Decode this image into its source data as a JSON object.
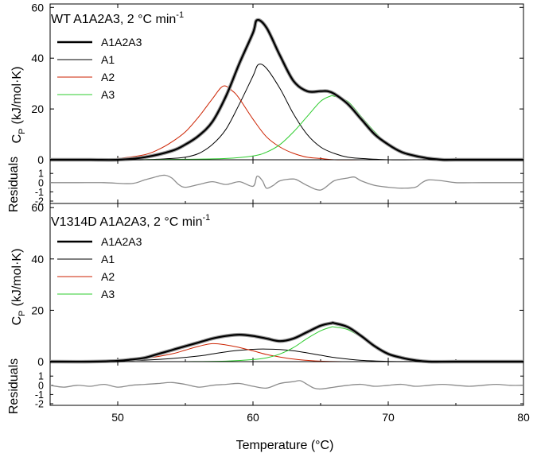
{
  "chart_data": [
    {
      "type": "line",
      "title": "WT A1A2A3, 2 °C min",
      "title_superscript": "-1",
      "ylabel": "C",
      "ylabel_subscript": "P",
      "ylabel_units": "(kJ/mol·K)",
      "xlim": [
        45,
        80
      ],
      "ylim": [
        -2,
        60
      ],
      "yticks": [
        0,
        20,
        40,
        60
      ],
      "legend_position": "top-left",
      "series": [
        {
          "name": "A1A2A3",
          "color": "#000000",
          "role": "total",
          "x": [
            45,
            48,
            50,
            52,
            54,
            55,
            56,
            57,
            58,
            59,
            60,
            60.3,
            61,
            62,
            63,
            64,
            65,
            65.5,
            66,
            67,
            68,
            69,
            70,
            71,
            72,
            72.5,
            73,
            74,
            75,
            77,
            80
          ],
          "y": [
            0,
            0,
            0,
            1,
            3.5,
            6,
            9.5,
            15,
            25,
            38,
            50,
            55,
            52,
            41,
            31,
            27,
            27,
            27,
            26,
            22,
            16,
            10,
            6,
            3,
            1.5,
            1,
            0.5,
            0,
            0,
            0,
            0
          ]
        },
        {
          "name": "A1",
          "color": "#000000",
          "role": "component",
          "x": [
            50,
            52,
            54,
            55,
            56,
            57,
            58,
            59,
            60,
            60.4,
            61,
            62,
            63,
            64,
            65,
            66,
            67,
            68,
            70,
            72,
            75
          ],
          "y": [
            0,
            0,
            0.5,
            1,
            2.5,
            6,
            12,
            22,
            33,
            37.5,
            36,
            28,
            18,
            10,
            5,
            2.5,
            1,
            0.5,
            0,
            0,
            0
          ]
        },
        {
          "name": "A2",
          "color": "#cc2200",
          "role": "component",
          "x": [
            48,
            50,
            52,
            53,
            54,
            55,
            56,
            57,
            57.8,
            58.5,
            59,
            60,
            61,
            62,
            63,
            64,
            65,
            66,
            68,
            70
          ],
          "y": [
            0,
            0.5,
            2,
            4,
            7,
            11,
            17,
            24,
            29,
            27,
            24,
            16,
            9,
            5,
            2.5,
            1,
            0.5,
            0,
            0,
            0
          ]
        },
        {
          "name": "A3",
          "color": "#2ecc2e",
          "role": "component",
          "x": [
            50,
            55,
            58,
            60,
            61,
            62,
            63,
            64,
            65,
            65.7,
            66,
            67,
            68,
            69,
            70,
            71,
            72,
            73,
            74,
            75,
            77
          ],
          "y": [
            0,
            0.2,
            0.5,
            1.5,
            3,
            6,
            11,
            17,
            23,
            25,
            25,
            23,
            17,
            11,
            6,
            3,
            1.5,
            0.5,
            0,
            0,
            0
          ]
        }
      ]
    },
    {
      "type": "line",
      "ylabel": "Residuals",
      "ylim": [
        -2,
        1.5
      ],
      "yticks": [
        -2,
        -1,
        0,
        1
      ],
      "series": [
        {
          "name": "Residuals",
          "color": "#8c8c8c",
          "x": [
            45,
            47,
            49,
            51,
            52,
            53,
            53.5,
            54,
            54.5,
            55,
            56,
            57,
            58,
            59,
            60,
            60.3,
            60.7,
            61,
            61.5,
            62,
            63,
            63.5,
            64,
            65,
            66,
            67,
            67.5,
            68,
            69,
            70,
            71,
            72,
            72.5,
            73,
            74,
            75,
            77,
            80
          ],
          "y": [
            0,
            0,
            0,
            -0.1,
            0.3,
            0.7,
            0.8,
            0.5,
            -0.2,
            -0.5,
            -0.2,
            0.1,
            -0.2,
            0.1,
            -0.4,
            0.7,
            0.2,
            -0.6,
            -0.3,
            0.2,
            0.4,
            0.1,
            -0.3,
            -0.8,
            0.2,
            0.5,
            0.6,
            0.2,
            -0.3,
            -0.5,
            -0.6,
            -0.5,
            0,
            0.3,
            0.2,
            0,
            0,
            0
          ]
        }
      ]
    },
    {
      "type": "line",
      "title": "V1314D A1A2A3, 2 °C min",
      "title_superscript": "-1",
      "ylabel": "C",
      "ylabel_subscript": "P",
      "ylabel_units": "(kJ/mol·K)",
      "xlim": [
        45,
        80
      ],
      "ylim": [
        -2,
        60
      ],
      "yticks": [
        0,
        20,
        40,
        60
      ],
      "legend_position": "top-left",
      "series": [
        {
          "name": "A1A2A3",
          "color": "#000000",
          "role": "total",
          "x": [
            45,
            48,
            50,
            51,
            52,
            53,
            54,
            55,
            56,
            57,
            58,
            59,
            60,
            61,
            62,
            63,
            64,
            65,
            65.8,
            66,
            67,
            68,
            69,
            70,
            71,
            72,
            73,
            75,
            80
          ],
          "y": [
            0,
            0,
            0.3,
            0.8,
            1.5,
            3,
            4.5,
            6,
            7.5,
            9,
            10,
            10.5,
            10,
            9,
            8,
            9,
            11.5,
            14,
            15,
            15,
            13.5,
            10,
            6,
            3,
            1.5,
            0.5,
            0,
            0,
            0
          ]
        },
        {
          "name": "A1",
          "color": "#000000",
          "role": "component",
          "x": [
            48,
            50,
            52,
            54,
            56,
            57,
            58,
            59,
            60,
            61,
            62,
            63,
            64,
            65,
            66,
            67,
            68,
            70,
            72,
            75
          ],
          "y": [
            0,
            0.3,
            0.6,
            1.2,
            2.2,
            3,
            3.8,
            4.4,
            4.8,
            4.9,
            4.7,
            4.2,
            3.4,
            2.5,
            1.6,
            1,
            0.5,
            0.1,
            0,
            0
          ]
        },
        {
          "name": "A2",
          "color": "#cc2200",
          "role": "component",
          "x": [
            48,
            50,
            52,
            54,
            55,
            56,
            57,
            58,
            59,
            60,
            61,
            62,
            63,
            64,
            65,
            67,
            70
          ],
          "y": [
            0,
            0.3,
            1.2,
            3,
            4.5,
            6,
            7,
            6.5,
            5.5,
            4.2,
            2.8,
            1.8,
            1,
            0.5,
            0.2,
            0,
            0
          ]
        },
        {
          "name": "A3",
          "color": "#2ecc2e",
          "role": "component",
          "x": [
            55,
            58,
            60,
            61,
            62,
            63,
            64,
            65,
            65.8,
            66,
            67,
            68,
            69,
            70,
            71,
            72,
            73,
            75,
            77
          ],
          "y": [
            0,
            0.2,
            0.8,
            1.5,
            3,
            5.5,
            9,
            12,
            13.5,
            13.5,
            12.5,
            9.5,
            6,
            3,
            1.5,
            0.5,
            0,
            0,
            0
          ]
        }
      ]
    },
    {
      "type": "line",
      "xlabel": "Temperature (°C)",
      "xlim": [
        45,
        80
      ],
      "xticks": [
        50,
        60,
        70,
        80
      ],
      "ylabel": "Residuals",
      "ylim": [
        -2,
        1.5
      ],
      "yticks": [
        -2,
        -1,
        0,
        1
      ],
      "series": [
        {
          "name": "Residuals",
          "color": "#8c8c8c",
          "x": [
            45,
            46,
            47,
            48,
            49,
            50,
            51,
            52,
            53,
            54,
            55,
            56,
            57,
            58,
            59,
            60,
            61,
            62,
            63,
            63.5,
            64,
            64.5,
            65,
            66,
            67,
            68,
            69,
            70,
            71,
            72,
            73,
            74,
            75,
            76,
            77,
            78,
            79,
            80
          ],
          "y": [
            0,
            -0.2,
            0,
            -0.1,
            0.1,
            -0.2,
            0,
            0.1,
            0.2,
            0.3,
            0.1,
            -0.2,
            0,
            0.1,
            0.2,
            -0.1,
            -0.3,
            0.2,
            0.4,
            0.5,
            0.1,
            -0.3,
            -0.4,
            -0.2,
            0,
            0.1,
            -0.1,
            0,
            0.1,
            -0.1,
            0,
            0.1,
            0,
            -0.1,
            0,
            0.1,
            0,
            0
          ]
        }
      ]
    }
  ]
}
